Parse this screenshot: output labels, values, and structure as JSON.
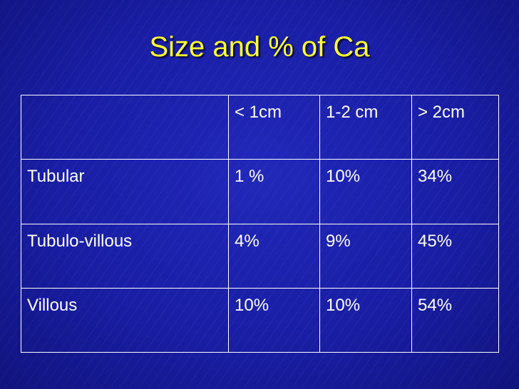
{
  "slide": {
    "title": "Size and % of Ca"
  },
  "table": {
    "header": [
      "",
      "< 1cm",
      "1-2 cm",
      "> 2cm"
    ],
    "rows": [
      [
        "Tubular",
        "1 %",
        "10%",
        "34%"
      ],
      [
        "Tubulo-villous",
        "4%",
        "9%",
        "45%"
      ],
      [
        "Villous",
        "10%",
        "10%",
        "54%"
      ]
    ]
  }
}
